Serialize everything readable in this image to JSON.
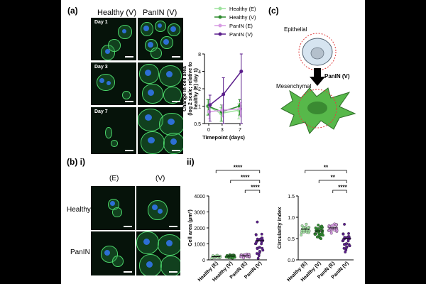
{
  "panel_a": {
    "label": "(a)",
    "col_headers": [
      "Healthy (V)",
      "PanIN (V)"
    ],
    "day_labels": [
      "Day 1",
      "Day 3",
      "Day 7"
    ]
  },
  "panel_b": {
    "label": "(b) i)",
    "col_headers": [
      "(E)",
      "(V)"
    ],
    "row_labels": [
      "Healthy",
      "PanIN"
    ]
  },
  "panel_c": {
    "label": "(c)",
    "epithelial": "Epithelial",
    "mesenchymal": "Mesenchymal",
    "arrow_label": "PanIN (V)"
  },
  "panel_ii_label": "ii)",
  "chart_data": [
    {
      "type": "line",
      "ylabel_lines": [
        "Change in cell area",
        "(log 2 scale; relative to",
        "healthy (E) day 1)"
      ],
      "xlabel": "Timepoint (days)",
      "x": [
        0,
        3,
        7
      ],
      "xticks": [
        "0",
        "3",
        "7"
      ],
      "yticks": [
        "0.5",
        "1",
        "2",
        "4",
        "8"
      ],
      "ylim": [
        0.5,
        8
      ],
      "log_scale": "log2",
      "legend_position": "top",
      "series": [
        {
          "name": "Healthy (E)",
          "color": "#9ee29e",
          "values": [
            1.0,
            0.75,
            0.85
          ],
          "err": [
            0.3,
            0.2,
            0.25
          ]
        },
        {
          "name": "Healthy (V)",
          "color": "#2e8b2e",
          "values": [
            1.0,
            0.8,
            1.0
          ],
          "err": [
            0.3,
            0.25,
            0.3
          ]
        },
        {
          "name": "PanIN (E)",
          "color": "#d79be3",
          "values": [
            0.8,
            0.85,
            0.9
          ],
          "err": [
            0.2,
            0.2,
            0.25
          ]
        },
        {
          "name": "PanIN (V)",
          "color": "#5b1e8c",
          "values": [
            1.05,
            1.6,
            4.0
          ],
          "err": [
            0.5,
            1.5,
            4.0
          ]
        }
      ]
    },
    {
      "type": "scatter",
      "ylabel": "Cell area (µm²)",
      "categories": [
        "Healthy (E)",
        "Healthy (V)",
        "PanIN (E)",
        "PanIN (V)"
      ],
      "colors": [
        "#a6e3a6",
        "#2e8b2e",
        "#d79be3",
        "#5b1e8c"
      ],
      "means": [
        200,
        230,
        260,
        1200
      ],
      "sd": [
        60,
        80,
        90,
        700
      ],
      "yticks": [
        "0",
        "1000",
        "2000",
        "3000",
        "4000"
      ],
      "ylim": [
        0,
        4000
      ],
      "significance": [
        {
          "from": 0,
          "to": 3,
          "label": "****"
        },
        {
          "from": 1,
          "to": 3,
          "label": "****"
        },
        {
          "from": 2,
          "to": 3,
          "label": "****"
        }
      ]
    },
    {
      "type": "scatter",
      "ylabel": "Circularity index",
      "categories": [
        "Healthy (E)",
        "Healthy (V)",
        "PanIN (E)",
        "PanIN (V)"
      ],
      "colors": [
        "#a6e3a6",
        "#2e8b2e",
        "#d79be3",
        "#5b1e8c"
      ],
      "means": [
        0.72,
        0.68,
        0.75,
        0.5
      ],
      "sd": [
        0.08,
        0.12,
        0.08,
        0.2
      ],
      "yticks": [
        "0.0",
        "0.5",
        "1.0",
        "1.5"
      ],
      "ylim": [
        0,
        1.5
      ],
      "significance": [
        {
          "from": 0,
          "to": 3,
          "label": "**"
        },
        {
          "from": 1,
          "to": 3,
          "label": "**"
        },
        {
          "from": 2,
          "to": 3,
          "label": "****"
        }
      ]
    }
  ]
}
